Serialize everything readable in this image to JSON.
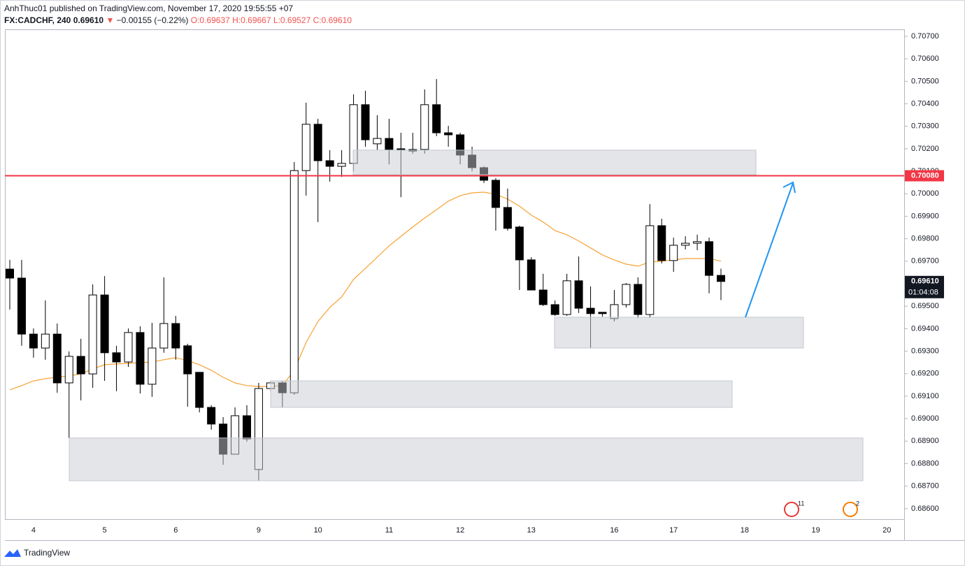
{
  "chart_data": {
    "type": "candlestick",
    "header": {
      "published": "AnhThuc01 published on TradingView.com, November 17, 2020 19:55:55 +07",
      "symbol": "FX:CADCHF, 240",
      "last": "0.69610",
      "arrow": "▼",
      "change": "−0.00155 (−0.22%)",
      "open": "O:0.69637",
      "high": "H:0.69667",
      "low": "L:0.69527",
      "close": "C:0.69610"
    },
    "footer": "TradingView",
    "categories": [
      null,
      null,
      "4",
      null,
      null,
      null,
      null,
      null,
      "5",
      null,
      null,
      null,
      null,
      null,
      "6",
      null,
      null,
      null,
      null,
      null,
      null,
      "9",
      null,
      null,
      null,
      null,
      "10",
      null,
      null,
      null,
      null,
      null,
      "11",
      null,
      null,
      null,
      null,
      null,
      "12",
      null,
      null,
      null,
      null,
      null,
      "13",
      null,
      null,
      null,
      null,
      null,
      null,
      "16",
      null,
      null,
      null,
      null,
      "17",
      null,
      null,
      null,
      null,
      null,
      "18",
      null,
      null,
      null,
      null,
      null,
      "19",
      null,
      null,
      null,
      null,
      null,
      "20"
    ],
    "open": [
      0.69665,
      0.69625,
      0.69376,
      0.69314,
      0.69376,
      0.69159,
      0.69277,
      0.69199,
      0.6955,
      0.69293,
      0.69252,
      0.69383,
      0.69153,
      0.69314,
      0.69423,
      0.69324,
      0.69206,
      0.6905,
      0.68976,
      0.68842,
      0.69013,
      0.68774,
      0.69134,
      0.69159,
      0.69115,
      0.70103,
      0.70309,
      0.70147,
      0.70122,
      0.70135,
      0.70396,
      0.70222,
      0.70246,
      0.702,
      0.70197,
      0.70197,
      0.70396,
      0.70271,
      0.70262,
      0.70172,
      0.70116,
      0.7006,
      0.69939,
      0.69852,
      0.69706,
      0.69572,
      0.69507,
      0.69463,
      0.69613,
      0.69491,
      0.69473,
      0.69445,
      0.69507,
      0.69597,
      0.69463,
      0.69858,
      0.69703,
      0.69771,
      0.6978,
      0.69787,
      0.69637,
      null,
      null,
      null,
      null,
      null,
      null,
      null,
      null,
      null,
      null,
      null,
      null,
      null,
      null
    ],
    "high": [
      0.69706,
      0.69706,
      0.69401,
      0.69526,
      0.69423,
      0.69299,
      0.69355,
      0.69597,
      0.69634,
      0.69324,
      0.69401,
      0.69411,
      0.69426,
      0.69628,
      0.69457,
      0.69333,
      0.69206,
      0.6906,
      0.69007,
      0.6905,
      0.6906,
      0.69159,
      0.69168,
      0.69168,
      0.70141,
      0.70405,
      0.70333,
      0.70194,
      0.70194,
      0.70442,
      0.70458,
      0.70349,
      0.70333,
      0.70271,
      0.70271,
      0.70464,
      0.7051,
      0.70302,
      0.70271,
      0.70209,
      0.70122,
      0.70069,
      0.70023,
      0.69858,
      0.69718,
      0.69644,
      0.69526,
      0.69644,
      0.69721,
      0.69588,
      0.69473,
      0.69572,
      0.69603,
      0.69628,
      0.69954,
      0.69889,
      0.69805,
      0.69811,
      0.69818,
      0.69805,
      0.69667,
      null,
      null,
      null,
      null,
      null,
      null,
      null,
      null,
      null,
      null,
      null,
      null,
      null,
      null
    ],
    "low": [
      0.69485,
      0.69324,
      0.69271,
      0.69262,
      0.69115,
      0.68914,
      0.69081,
      0.69137,
      0.69168,
      0.69122,
      0.6923,
      0.69112,
      0.69097,
      0.69293,
      0.69262,
      0.69053,
      0.69028,
      0.68951,
      0.68795,
      0.68842,
      0.68898,
      0.68724,
      0.69122,
      0.6905,
      0.69106,
      0.69992,
      0.69874,
      0.70054,
      0.70075,
      0.701,
      0.70209,
      0.70194,
      0.70131,
      0.69985,
      0.70178,
      0.70178,
      0.70256,
      0.70209,
      0.70131,
      0.701,
      0.70048,
      0.69836,
      0.69836,
      0.69572,
      0.69572,
      0.69501,
      0.69457,
      0.69457,
      0.6947,
      0.69314,
      0.69454,
      0.69432,
      0.69494,
      0.69448,
      0.69448,
      0.6969,
      0.69653,
      0.69752,
      0.69749,
      0.69557,
      0.69527,
      null,
      null,
      null,
      null,
      null,
      null,
      null,
      null,
      null,
      null,
      null,
      null,
      null,
      null
    ],
    "close": [
      0.69625,
      0.69376,
      0.69314,
      0.69376,
      0.69159,
      0.69277,
      0.69199,
      0.6955,
      0.69293,
      0.69252,
      0.69383,
      0.69153,
      0.69314,
      0.69423,
      0.69314,
      0.69199,
      0.6905,
      0.68976,
      0.68842,
      0.69013,
      0.6891,
      0.69134,
      0.69159,
      0.69115,
      0.70103,
      0.70309,
      0.70147,
      0.70122,
      0.70135,
      0.70396,
      0.7024,
      0.70246,
      0.70197,
      0.70194,
      0.7019,
      0.70396,
      0.70271,
      0.70262,
      0.70172,
      0.70116,
      0.7006,
      0.69939,
      0.69846,
      0.69706,
      0.69572,
      0.69507,
      0.69463,
      0.69613,
      0.69491,
      0.69467,
      0.69467,
      0.69507,
      0.69597,
      0.69463,
      0.69858,
      0.69703,
      0.69771,
      0.6978,
      0.69787,
      0.69637,
      0.6961,
      null,
      null,
      null,
      null,
      null,
      null,
      null,
      null,
      null,
      null,
      null,
      null,
      null,
      null
    ],
    "up_color": "#ffffff",
    "down_color": "#000000",
    "ma": {
      "color": "#f7a234",
      "values": [
        0.69128,
        0.69147,
        0.69168,
        0.69178,
        0.69184,
        0.6919,
        0.69199,
        0.69221,
        0.6924,
        0.69243,
        0.69246,
        0.69249,
        0.69252,
        0.69262,
        0.69271,
        0.69258,
        0.6924,
        0.69215,
        0.69184,
        0.69159,
        0.69147,
        0.69143,
        0.69143,
        0.69147,
        0.69215,
        0.69339,
        0.69432,
        0.69494,
        0.69541,
        0.69619,
        0.69668,
        0.69718,
        0.69768,
        0.69811,
        0.69852,
        0.69892,
        0.69929,
        0.69967,
        0.69992,
        0.70004,
        0.70007,
        0.69998,
        0.69976,
        0.69945,
        0.69905,
        0.69874,
        0.69836,
        0.69818,
        0.6979,
        0.69759,
        0.69728,
        0.69706,
        0.69687,
        0.69678,
        0.69696,
        0.697,
        0.69706,
        0.69712,
        0.69712,
        0.69712,
        0.697,
        null,
        null,
        null,
        null,
        null,
        null,
        null,
        null,
        null,
        null,
        null,
        null,
        null,
        null
      ]
    },
    "hline": {
      "value": 0.7008,
      "label": "0.70080",
      "color": "#f23645"
    },
    "last_price": {
      "value": 0.6961,
      "label": "0.69610",
      "countdown": "01:04:08"
    },
    "zones": [
      {
        "low": 0.70085,
        "high": 0.70194
      },
      {
        "low": 0.6905,
        "high": 0.69168
      },
      {
        "low": 0.69314,
        "high": 0.69451
      },
      {
        "low": 0.68724,
        "high": 0.68914
      }
    ],
    "markers": [
      "11",
      "2"
    ],
    "ylim": [
      0.68553,
      0.70731
    ],
    "yticks": [
      {
        "value": 0.686,
        "label": "0.68600"
      },
      {
        "value": 0.687,
        "label": "0.68700"
      },
      {
        "value": 0.688,
        "label": "0.68800"
      },
      {
        "value": 0.689,
        "label": "0.68900"
      },
      {
        "value": 0.69,
        "label": "0.69000"
      },
      {
        "value": 0.691,
        "label": "0.69100"
      },
      {
        "value": 0.692,
        "label": "0.69200"
      },
      {
        "value": 0.693,
        "label": "0.69300"
      },
      {
        "value": 0.694,
        "label": "0.69400"
      },
      {
        "value": 0.695,
        "label": "0.69500"
      },
      {
        "value": 0.696,
        "label": "0.69600"
      },
      {
        "value": 0.697,
        "label": "0.69700"
      },
      {
        "value": 0.698,
        "label": "0.69800"
      },
      {
        "value": 0.699,
        "label": "0.69900"
      },
      {
        "value": 0.7,
        "label": "0.70000"
      },
      {
        "value": 0.701,
        "label": "0.70100"
      },
      {
        "value": 0.702,
        "label": "0.70200"
      },
      {
        "value": 0.703,
        "label": "0.70300"
      },
      {
        "value": 0.704,
        "label": "0.70400"
      },
      {
        "value": 0.705,
        "label": "0.70500"
      },
      {
        "value": 0.706,
        "label": "0.70600"
      },
      {
        "value": 0.707,
        "label": "0.70700"
      }
    ]
  }
}
